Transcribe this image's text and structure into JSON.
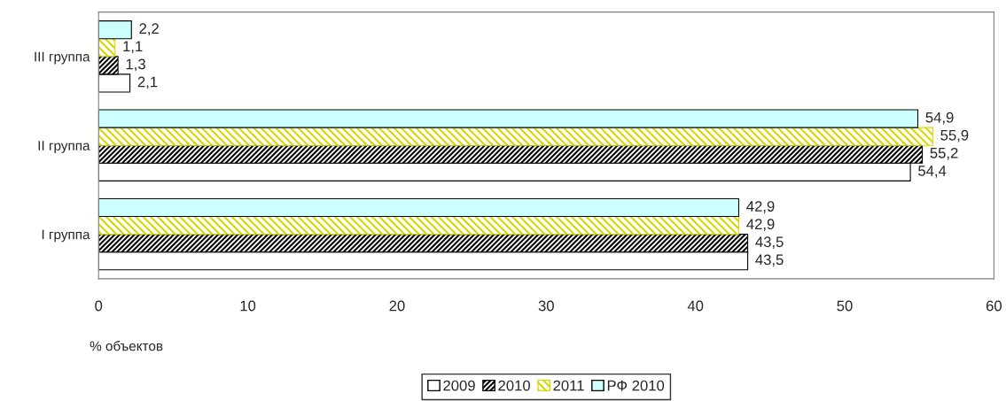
{
  "chart_data": {
    "type": "bar",
    "orientation": "horizontal",
    "categories": [
      "III группа",
      "II группа",
      "I группа"
    ],
    "series": [
      {
        "name": "2009",
        "color": "#ffffff",
        "values": [
          2.1,
          54.4,
          43.5
        ],
        "value_labels": [
          "2,1",
          "54,4",
          "43,5"
        ]
      },
      {
        "name": "2010",
        "color": "#000000",
        "values": [
          1.3,
          55.2,
          43.5
        ],
        "value_labels": [
          "1,3",
          "55,2",
          "43,5"
        ]
      },
      {
        "name": "2011",
        "color": "#d8d800",
        "values": [
          1.1,
          55.9,
          42.9
        ],
        "value_labels": [
          "1,1",
          "55,9",
          "42,9"
        ]
      },
      {
        "name": "РФ 2010",
        "color": "#ccffff",
        "values": [
          2.2,
          54.9,
          42.9
        ],
        "value_labels": [
          "2,2",
          "54,9",
          "42,9"
        ]
      }
    ],
    "xlim": [
      0,
      60
    ],
    "xticks": [
      0,
      10,
      20,
      30,
      40,
      50,
      60
    ],
    "xlabel": "% объектов",
    "legend": "bottom",
    "grid": false
  }
}
